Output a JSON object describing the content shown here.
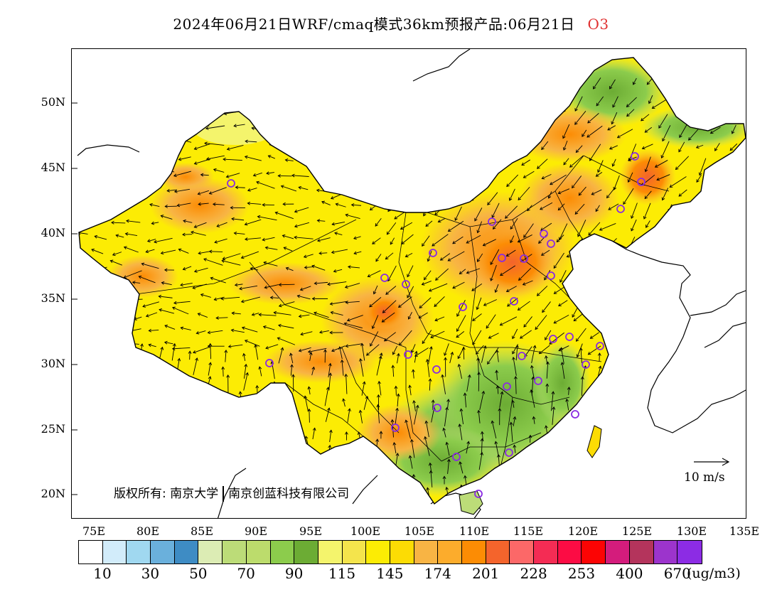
{
  "title": {
    "main": "2024年06月21日WRF/cmaq模式36km预报产品:06月21日",
    "species": "O3",
    "species_color": "#e03030"
  },
  "axes": {
    "lat_labels": [
      "50N",
      "45N",
      "40N",
      "35N",
      "30N",
      "25N",
      "20N"
    ],
    "lon_labels": [
      "75E",
      "80E",
      "85E",
      "90E",
      "95E",
      "100E",
      "105E",
      "110E",
      "115E",
      "120E",
      "125E",
      "130E",
      "135E"
    ]
  },
  "copyright": {
    "prefix": "版权所有:",
    "org1": "南京大学",
    "org2": "南京创蓝科技有限公司"
  },
  "wind_reference": {
    "label": "10 m/s"
  },
  "color_scale": {
    "colors": [
      "#ffffff",
      "#d2ecfa",
      "#a0d8f0",
      "#6ab0dc",
      "#3e8cc4",
      "#dcecb4",
      "#bcdc78",
      "#bcdc6c",
      "#8ccc4c",
      "#6cac34",
      "#f4f46c",
      "#f4e44c",
      "#fcec04",
      "#fcdc04",
      "#f8b444",
      "#fcac2c",
      "#fc8c04",
      "#f4642c",
      "#fc6868",
      "#f42c54",
      "#fc0c44",
      "#fc0404",
      "#d41c7c",
      "#b4345c",
      "#9c34cc",
      "#8c2ce4"
    ],
    "tick_labels": [
      "10",
      "30",
      "50",
      "70",
      "90",
      "115",
      "145",
      "174",
      "201",
      "228",
      "253",
      "400",
      "670"
    ],
    "unit": "(ug/m3)"
  }
}
